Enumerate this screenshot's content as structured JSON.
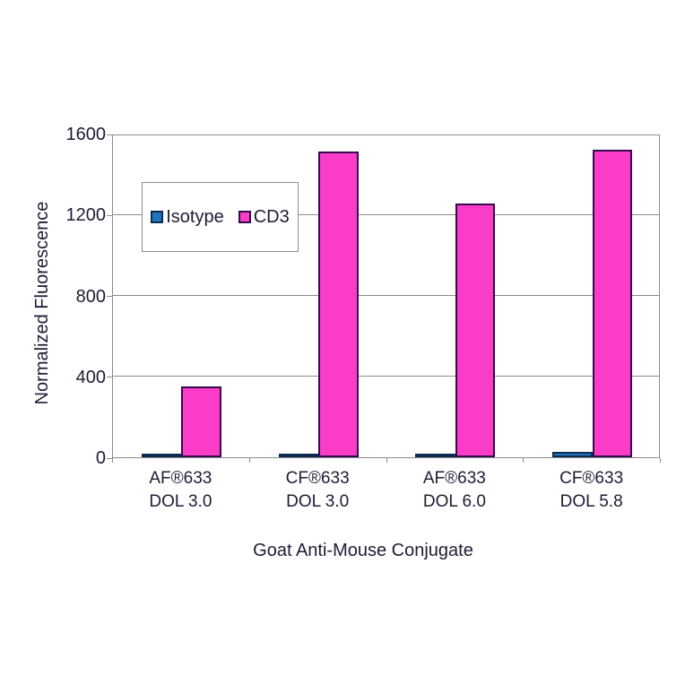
{
  "chart_data": {
    "type": "bar",
    "title": "",
    "xlabel": "Goat Anti-Mouse Conjugate",
    "ylabel": "Normalized Fluorescence",
    "categories": [
      {
        "line1": "AF®633",
        "line2": "DOL 3.0"
      },
      {
        "line1": "CF®633",
        "line2": "DOL 3.0"
      },
      {
        "line1": "AF®633",
        "line2": "DOL 6.0"
      },
      {
        "line1": "CF®633",
        "line2": "DOL 5.8"
      }
    ],
    "series": [
      {
        "name": "Isotype",
        "color": "#1f75bb",
        "border_color": "#0d2b52",
        "values": [
          10,
          10,
          10,
          25
        ]
      },
      {
        "name": "CD3",
        "color": "#fb3cc8",
        "border_color": "#360a4d",
        "values": [
          350,
          1510,
          1255,
          1520
        ]
      }
    ],
    "ylim": [
      0,
      1600
    ],
    "yticks": [
      0,
      400,
      800,
      1200,
      1600
    ],
    "grid": true,
    "legend_position": "upper-left-inside",
    "colors": {
      "axis": "#8c8c8c",
      "text": "#1c1c35",
      "background": "#ffffff"
    }
  }
}
